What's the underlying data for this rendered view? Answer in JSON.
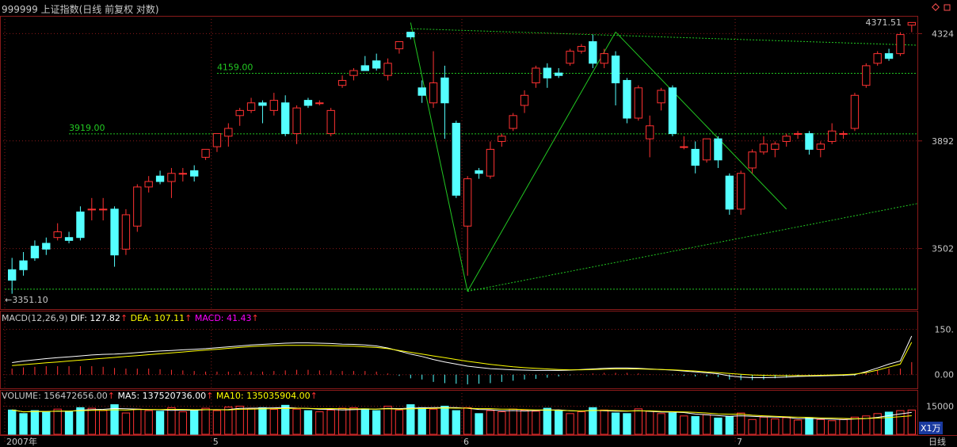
{
  "header": {
    "title": "999999 上证指数(日线 前复权 对数)",
    "corner_icon": "diamond-icon"
  },
  "colors": {
    "up": "#ff3232",
    "down": "#54ffff",
    "grid": "#8a1a1a",
    "trend": "#22c822",
    "dif": "#ffffff",
    "dea": "#ffff00",
    "macd": "#ff00ff",
    "label": "#c8c8c8"
  },
  "main": {
    "high_label": "4371.51",
    "low_label": "←3351.10",
    "level_labels": [
      "4159.00",
      "3919.00"
    ],
    "yticks": [
      "4324",
      "3892",
      "3502"
    ]
  },
  "macd": {
    "name": "MACD(12,26,9)",
    "dif_label": "DIF: 127.82",
    "dea_label": "DEA: 107.11",
    "macd_label": "MACD: 41.43",
    "yticks": [
      "150.",
      "0.00"
    ]
  },
  "volume": {
    "label": "VOLUME: 156472656.00",
    "ma5_label": "MA5: 137520736.00",
    "ma10_label": "MA10: 135035904.00",
    "ytick": "15000",
    "unit": "X1万"
  },
  "xaxis": {
    "labels": [
      "2007年",
      "5",
      "6",
      "7"
    ],
    "period": "日线"
  },
  "chart_data": {
    "type": "candlestick",
    "scale": "log",
    "ylim": [
      3300,
      4400
    ],
    "candles": [
      [
        3430,
        3395,
        3470,
        3350
      ],
      [
        3460,
        3430,
        3490,
        3410
      ],
      [
        3510,
        3470,
        3530,
        3460
      ],
      [
        3520,
        3500,
        3540,
        3480
      ],
      [
        3540,
        3560,
        3590,
        3530
      ],
      [
        3540,
        3530,
        3560,
        3520
      ],
      [
        3630,
        3540,
        3650,
        3530
      ],
      [
        3640,
        3640,
        3680,
        3600
      ],
      [
        3640,
        3640,
        3680,
        3600
      ],
      [
        3640,
        3480,
        3650,
        3440
      ],
      [
        3500,
        3620,
        3640,
        3480
      ],
      [
        3580,
        3720,
        3730,
        3560
      ],
      [
        3720,
        3740,
        3760,
        3700
      ],
      [
        3760,
        3740,
        3780,
        3730
      ],
      [
        3740,
        3770,
        3790,
        3680
      ],
      [
        3770,
        3770,
        3790,
        3740
      ],
      [
        3780,
        3760,
        3800,
        3740
      ],
      [
        3830,
        3860,
        3860,
        3820
      ],
      [
        3870,
        3920,
        3920,
        3850
      ],
      [
        3910,
        3940,
        3960,
        3870
      ],
      [
        3990,
        4010,
        4020,
        3950
      ],
      [
        4010,
        4040,
        4060,
        4000
      ],
      [
        4040,
        4030,
        4050,
        3960
      ],
      [
        4010,
        4050,
        4080,
        3990
      ],
      [
        4040,
        3920,
        4070,
        3910
      ],
      [
        3920,
        4020,
        4030,
        3880
      ],
      [
        4050,
        4030,
        4060,
        4020
      ],
      [
        4040,
        4040,
        4050,
        4030
      ],
      [
        3920,
        4010,
        4020,
        3910
      ],
      [
        4110,
        4130,
        4150,
        4100
      ],
      [
        4150,
        4170,
        4180,
        4130
      ],
      [
        4190,
        4170,
        4230,
        4170
      ],
      [
        4210,
        4180,
        4240,
        4170
      ],
      [
        4150,
        4200,
        4220,
        4130
      ],
      [
        4260,
        4290,
        4290,
        4240
      ],
      [
        4330,
        4310,
        4330,
        4300
      ],
      [
        4100,
        4070,
        4130,
        4040
      ],
      [
        4040,
        4120,
        4250,
        4020
      ],
      [
        4140,
        4040,
        4190,
        3900
      ],
      [
        3960,
        3690,
        3970,
        3680
      ],
      [
        3580,
        3750,
        3760,
        3410
      ],
      [
        3780,
        3770,
        3790,
        3750
      ],
      [
        3760,
        3860,
        3890,
        3750
      ],
      [
        3890,
        3910,
        3920,
        3870
      ],
      [
        3940,
        3990,
        4000,
        3930
      ],
      [
        4030,
        4070,
        4090,
        4000
      ],
      [
        4120,
        4180,
        4190,
        4100
      ],
      [
        4180,
        4140,
        4200,
        4100
      ],
      [
        4160,
        4150,
        4180,
        4140
      ],
      [
        4200,
        4250,
        4260,
        4190
      ],
      [
        4250,
        4270,
        4280,
        4240
      ],
      [
        4290,
        4200,
        4320,
        4180
      ],
      [
        4200,
        4240,
        4260,
        4180
      ],
      [
        4230,
        4120,
        4250,
        4030
      ],
      [
        4130,
        3980,
        4140,
        3960
      ],
      [
        3980,
        4100,
        4110,
        3970
      ],
      [
        3900,
        3950,
        3990,
        3830
      ],
      [
        4040,
        4090,
        4100,
        4010
      ],
      [
        4100,
        3920,
        4110,
        3910
      ],
      [
        3870,
        3870,
        3910,
        3860
      ],
      [
        3860,
        3800,
        3890,
        3770
      ],
      [
        3820,
        3900,
        3900,
        3810
      ],
      [
        3900,
        3820,
        3910,
        3790
      ],
      [
        3760,
        3640,
        3770,
        3620
      ],
      [
        3640,
        3770,
        3780,
        3620
      ],
      [
        3790,
        3850,
        3860,
        3770
      ],
      [
        3850,
        3880,
        3910,
        3840
      ],
      [
        3860,
        3880,
        3890,
        3830
      ],
      [
        3890,
        3910,
        3920,
        3870
      ],
      [
        3920,
        3920,
        3930,
        3900
      ],
      [
        3920,
        3860,
        3930,
        3840
      ],
      [
        3860,
        3880,
        3890,
        3830
      ],
      [
        3890,
        3930,
        3960,
        3880
      ],
      [
        3920,
        3920,
        3930,
        3900
      ],
      [
        3940,
        4070,
        4080,
        3930
      ],
      [
        4110,
        4190,
        4200,
        4100
      ],
      [
        4200,
        4240,
        4250,
        4190
      ],
      [
        4240,
        4220,
        4260,
        4210
      ],
      [
        4240,
        4320,
        4330,
        4230
      ],
      [
        4360,
        4371.51,
        4371.51,
        4330
      ]
    ],
    "dif": [
      40,
      45,
      49,
      53,
      56,
      59,
      62,
      65,
      67,
      68,
      70,
      73,
      76,
      78,
      80,
      82,
      84,
      86,
      89,
      92,
      95,
      98,
      100,
      102,
      104,
      105,
      105,
      104,
      103,
      101,
      100,
      98,
      95,
      88,
      78,
      68,
      60,
      50,
      42,
      35,
      28,
      24,
      20,
      18,
      16,
      15,
      14,
      14,
      14,
      15,
      17,
      19,
      21,
      22,
      22,
      21,
      19,
      17,
      15,
      12,
      9,
      6,
      3,
      -4,
      -8,
      -10,
      -10,
      -9,
      -8,
      -6,
      -5,
      -4,
      -3,
      -2,
      0,
      10,
      22,
      35,
      45,
      127.82
    ],
    "dea": [
      30,
      33,
      36,
      39,
      42,
      45,
      48,
      51,
      54,
      57,
      60,
      63,
      66,
      69,
      72,
      75,
      78,
      81,
      84,
      87,
      90,
      93,
      95,
      96,
      97,
      97,
      97,
      97,
      96,
      95,
      94,
      92,
      90,
      86,
      80,
      74,
      68,
      62,
      56,
      50,
      44,
      39,
      34,
      30,
      26,
      23,
      21,
      19,
      17,
      16,
      16,
      17,
      18,
      19,
      19,
      19,
      18,
      17,
      16,
      14,
      12,
      9,
      7,
      4,
      1,
      -1,
      -2,
      -3,
      -3,
      -3,
      -3,
      -2,
      -1,
      0,
      2,
      7,
      15,
      25,
      35,
      107.11
    ],
    "volume_rel": [
      0.82,
      0.7,
      0.8,
      0.75,
      0.85,
      0.78,
      0.9,
      0.88,
      0.8,
      1.0,
      0.72,
      0.85,
      0.8,
      0.78,
      0.9,
      0.76,
      0.82,
      0.88,
      0.8,
      0.92,
      0.95,
      0.86,
      0.9,
      0.84,
      0.98,
      0.85,
      0.8,
      0.76,
      0.82,
      0.88,
      0.9,
      0.86,
      0.8,
      0.95,
      0.82,
      1.0,
      0.9,
      0.85,
      0.95,
      0.8,
      0.9,
      0.7,
      0.8,
      0.76,
      0.85,
      0.82,
      0.78,
      0.88,
      0.8,
      0.7,
      0.76,
      0.9,
      0.82,
      0.72,
      0.7,
      0.86,
      0.78,
      0.7,
      0.72,
      0.62,
      0.6,
      0.66,
      0.55,
      0.6,
      0.72,
      0.5,
      0.58,
      0.52,
      0.56,
      0.48,
      0.55,
      0.5,
      0.46,
      0.5,
      0.58,
      0.62,
      0.7,
      0.75,
      0.8,
      0.82
    ]
  }
}
